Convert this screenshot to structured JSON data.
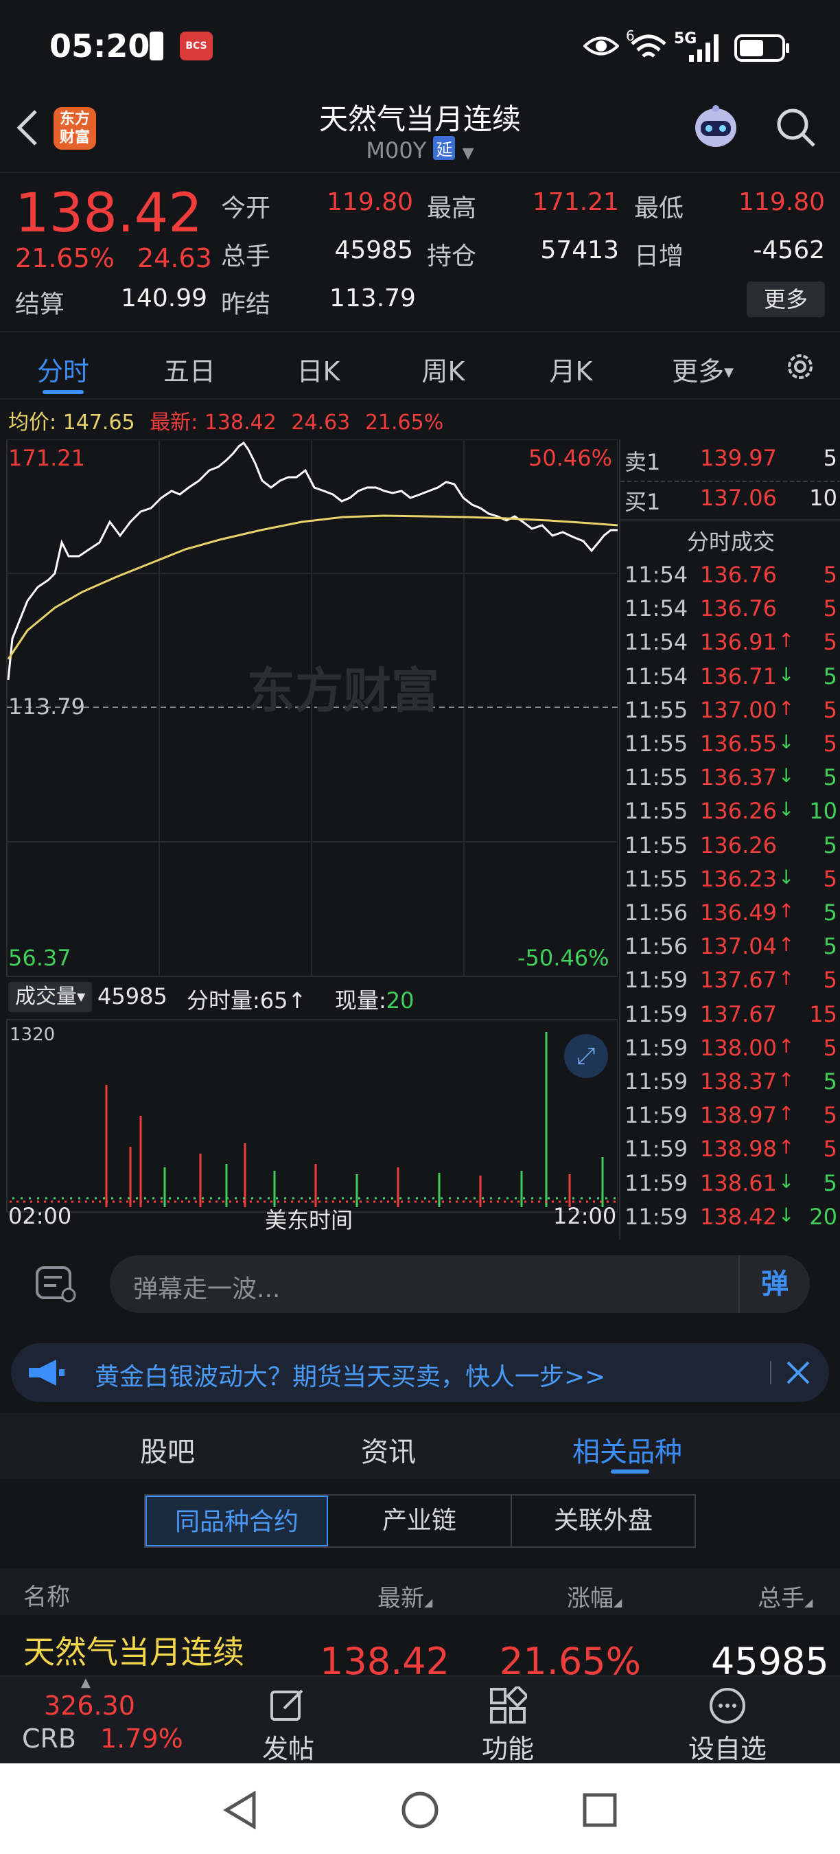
{
  "status_bar": {
    "time": "05:20",
    "network": "5G",
    "wifi_superscript": "6"
  },
  "nav": {
    "logo_text_line1": "东方",
    "logo_text_line2": "财富",
    "title": "天然气当月连续",
    "code": "M00Y",
    "delay_badge": "延"
  },
  "quote": {
    "price": "138.42",
    "change_pct": "21.65%",
    "change": "24.63",
    "fields": [
      {
        "label": "今开",
        "value": "119.80",
        "color": "red"
      },
      {
        "label": "最高",
        "value": "171.21",
        "color": "red"
      },
      {
        "label": "最低",
        "value": "119.80",
        "color": "red"
      },
      {
        "label": "总手",
        "value": "45985",
        "color": "white"
      },
      {
        "label": "持仓",
        "value": "57413",
        "color": "white"
      },
      {
        "label": "日增",
        "value": "-4562",
        "color": "white"
      },
      {
        "label": "结算",
        "value": "140.99",
        "color": "white"
      },
      {
        "label": "昨结",
        "value": "113.79",
        "color": "white"
      }
    ],
    "more_button": "更多"
  },
  "tabs": [
    "分时",
    "五日",
    "日K",
    "周K",
    "月K",
    "更多"
  ],
  "avg_line": {
    "avg_label": "均价:",
    "avg_value": "147.65",
    "latest_label": "最新:",
    "latest_value": "138.42",
    "change": "24.63",
    "change_pct": "21.65%"
  },
  "chart": {
    "y_top": "171.21",
    "y_top_pct": "50.46%",
    "y_mid": "113.79",
    "y_bottom": "56.37",
    "y_bottom_pct": "-50.46%",
    "watermark": "东方财富",
    "x_start": "02:00",
    "x_mid": "美东时间",
    "x_end": "12:00"
  },
  "volume": {
    "label": "成交量",
    "total": "45985",
    "minute_label": "分时量:",
    "minute_value": "65",
    "current_label": "现量:",
    "current_value": "20",
    "max": "1320"
  },
  "order_book": {
    "sell": {
      "label": "卖1",
      "price": "139.97",
      "qty": "5"
    },
    "buy": {
      "label": "买1",
      "price": "137.06",
      "qty": "10"
    }
  },
  "trades_title": "分时成交",
  "trades": [
    {
      "time": "11:54",
      "price": "136.76",
      "arrow": "",
      "qty": "5",
      "qty_color": "red"
    },
    {
      "time": "11:54",
      "price": "136.76",
      "arrow": "",
      "qty": "5",
      "qty_color": "red"
    },
    {
      "time": "11:54",
      "price": "136.91",
      "arrow": "↑",
      "qty": "5",
      "qty_color": "red"
    },
    {
      "time": "11:54",
      "price": "136.71",
      "arrow": "↓",
      "qty": "5",
      "qty_color": "green"
    },
    {
      "time": "11:55",
      "price": "137.00",
      "arrow": "↑",
      "qty": "5",
      "qty_color": "red"
    },
    {
      "time": "11:55",
      "price": "136.55",
      "arrow": "↓",
      "qty": "5",
      "qty_color": "red"
    },
    {
      "time": "11:55",
      "price": "136.37",
      "arrow": "↓",
      "qty": "5",
      "qty_color": "green"
    },
    {
      "time": "11:55",
      "price": "136.26",
      "arrow": "↓",
      "qty": "10",
      "qty_color": "green"
    },
    {
      "time": "11:55",
      "price": "136.26",
      "arrow": "",
      "qty": "5",
      "qty_color": "green"
    },
    {
      "time": "11:55",
      "price": "136.23",
      "arrow": "↓",
      "qty": "5",
      "qty_color": "red"
    },
    {
      "time": "11:56",
      "price": "136.49",
      "arrow": "↑",
      "qty": "5",
      "qty_color": "green"
    },
    {
      "time": "11:56",
      "price": "137.04",
      "arrow": "↑",
      "qty": "5",
      "qty_color": "green"
    },
    {
      "time": "11:59",
      "price": "137.67",
      "arrow": "↑",
      "qty": "5",
      "qty_color": "red"
    },
    {
      "time": "11:59",
      "price": "137.67",
      "arrow": "",
      "qty": "15",
      "qty_color": "red"
    },
    {
      "time": "11:59",
      "price": "138.00",
      "arrow": "↑",
      "qty": "5",
      "qty_color": "red"
    },
    {
      "time": "11:59",
      "price": "138.37",
      "arrow": "↑",
      "qty": "5",
      "qty_color": "green"
    },
    {
      "time": "11:59",
      "price": "138.97",
      "arrow": "↑",
      "qty": "5",
      "qty_color": "red"
    },
    {
      "time": "11:59",
      "price": "138.98",
      "arrow": "↑",
      "qty": "5",
      "qty_color": "red"
    },
    {
      "time": "11:59",
      "price": "138.61",
      "arrow": "↓",
      "qty": "5",
      "qty_color": "green"
    },
    {
      "time": "11:59",
      "price": "138.42",
      "arrow": "↓",
      "qty": "20",
      "qty_color": "green"
    }
  ],
  "danmu": {
    "placeholder": "弹幕走一波...",
    "send_icon_char": "弹"
  },
  "banner": {
    "text": "黄金白银波动大？期货当天买卖，快人一步>>"
  },
  "lower_tabs": [
    "股吧",
    "资讯",
    "相关品种"
  ],
  "segments": [
    "同品种合约",
    "产业链",
    "关联外盘"
  ],
  "table": {
    "headers": [
      "名称",
      "最新",
      "涨幅",
      "总手"
    ],
    "rows": [
      {
        "name": "天然气当月连续",
        "latest": "138.42",
        "change_pct": "21.65%",
        "volume": "45985"
      }
    ]
  },
  "bottom_bar": {
    "index_value": "326.30",
    "index_name": "CRB",
    "index_pct": "1.79%",
    "items": [
      "发帖",
      "功能",
      "设自选"
    ]
  },
  "colors": {
    "up": "#f23d3d",
    "down": "#3fcf5a",
    "accent": "#3b8ef5",
    "avg_line": "#e8d36a",
    "background": "#141519"
  },
  "icons": [
    "back-arrow-icon",
    "robot-assistant-icon",
    "search-icon",
    "settings-gear-icon",
    "expand-icon",
    "danmu-list-icon",
    "megaphone-icon",
    "close-icon",
    "edit-icon",
    "grid-icon",
    "more-dots-icon"
  ]
}
